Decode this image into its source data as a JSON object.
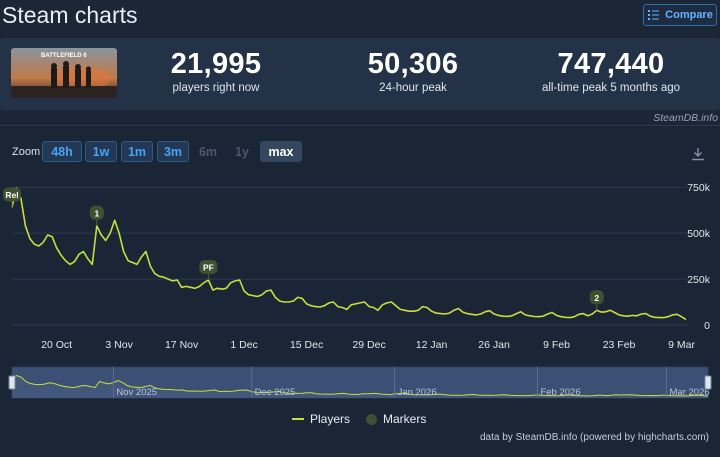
{
  "header": {
    "title": "Steam charts",
    "compare_label": "Compare"
  },
  "stats": [
    {
      "value": "21,995",
      "label": "players right now"
    },
    {
      "value": "50,306",
      "label": "24-hour peak"
    },
    {
      "value": "747,440",
      "label": "all-time peak 5 months ago"
    }
  ],
  "game_image_text": "BATTLEFIELD 6",
  "credit_top": "SteamDB.info",
  "zoom": {
    "label": "Zoom",
    "buttons": [
      {
        "label": "48h",
        "state": "active"
      },
      {
        "label": "1w",
        "state": "active"
      },
      {
        "label": "1m",
        "state": "active"
      },
      {
        "label": "3m",
        "state": "active"
      },
      {
        "label": "6m",
        "state": "disabled"
      },
      {
        "label": "1y",
        "state": "disabled"
      },
      {
        "label": "max",
        "state": "selected"
      }
    ]
  },
  "legend": {
    "players": "Players",
    "markers": "Markers"
  },
  "credit_bottom": "data by SteamDB.info (powered by highcharts.com)",
  "chart_data": {
    "type": "line",
    "series": [
      {
        "name": "Players",
        "color": "#c5e03c",
        "points": [
          [
            "2025-10-10",
            640
          ],
          [
            "2025-10-11",
            747
          ],
          [
            "2025-10-12",
            690
          ],
          [
            "2025-10-13",
            540
          ],
          [
            "2025-10-14",
            470
          ],
          [
            "2025-10-15",
            440
          ],
          [
            "2025-10-16",
            430
          ],
          [
            "2025-10-17",
            450
          ],
          [
            "2025-10-18",
            490
          ],
          [
            "2025-10-19",
            480
          ],
          [
            "2025-10-20",
            420
          ],
          [
            "2025-10-21",
            380
          ],
          [
            "2025-10-22",
            350
          ],
          [
            "2025-10-23",
            330
          ],
          [
            "2025-10-24",
            345
          ],
          [
            "2025-10-25",
            385
          ],
          [
            "2025-10-26",
            400
          ],
          [
            "2025-10-27",
            360
          ],
          [
            "2025-10-28",
            330
          ],
          [
            "2025-10-29",
            540
          ],
          [
            "2025-10-30",
            490
          ],
          [
            "2025-10-31",
            460
          ],
          [
            "2025-11-01",
            500
          ],
          [
            "2025-11-02",
            570
          ],
          [
            "2025-11-03",
            500
          ],
          [
            "2025-11-04",
            400
          ],
          [
            "2025-11-05",
            350
          ],
          [
            "2025-11-06",
            340
          ],
          [
            "2025-11-07",
            330
          ],
          [
            "2025-11-08",
            370
          ],
          [
            "2025-11-09",
            400
          ],
          [
            "2025-11-10",
            320
          ],
          [
            "2025-11-11",
            280
          ],
          [
            "2025-11-12",
            265
          ],
          [
            "2025-11-13",
            260
          ],
          [
            "2025-11-14",
            250
          ],
          [
            "2025-11-15",
            240
          ],
          [
            "2025-11-16",
            245
          ],
          [
            "2025-11-17",
            205
          ],
          [
            "2025-11-18",
            210
          ],
          [
            "2025-11-19",
            205
          ],
          [
            "2025-11-20",
            200
          ],
          [
            "2025-11-21",
            210
          ],
          [
            "2025-11-22",
            230
          ],
          [
            "2025-11-23",
            245
          ],
          [
            "2025-11-24",
            190
          ],
          [
            "2025-11-25",
            200
          ],
          [
            "2025-11-26",
            195
          ],
          [
            "2025-11-27",
            200
          ],
          [
            "2025-11-28",
            230
          ],
          [
            "2025-11-29",
            240
          ],
          [
            "2025-11-30",
            245
          ],
          [
            "2025-12-01",
            185
          ],
          [
            "2025-12-02",
            165
          ],
          [
            "2025-12-03",
            160
          ],
          [
            "2025-12-04",
            155
          ],
          [
            "2025-12-05",
            165
          ],
          [
            "2025-12-06",
            185
          ],
          [
            "2025-12-07",
            190
          ],
          [
            "2025-12-08",
            150
          ],
          [
            "2025-12-09",
            130
          ],
          [
            "2025-12-10",
            125
          ],
          [
            "2025-12-11",
            125
          ],
          [
            "2025-12-12",
            130
          ],
          [
            "2025-12-13",
            150
          ],
          [
            "2025-12-14",
            145
          ],
          [
            "2025-12-15",
            115
          ],
          [
            "2025-12-16",
            105
          ],
          [
            "2025-12-17",
            100
          ],
          [
            "2025-12-18",
            98
          ],
          [
            "2025-12-19",
            105
          ],
          [
            "2025-12-20",
            120
          ],
          [
            "2025-12-21",
            125
          ],
          [
            "2025-12-22",
            100
          ],
          [
            "2025-12-23",
            95
          ],
          [
            "2025-12-24",
            85
          ],
          [
            "2025-12-25",
            110
          ],
          [
            "2025-12-26",
            115
          ],
          [
            "2025-12-27",
            120
          ],
          [
            "2025-12-28",
            125
          ],
          [
            "2025-12-29",
            100
          ],
          [
            "2025-12-30",
            95
          ],
          [
            "2025-12-31",
            80
          ],
          [
            "2026-01-01",
            110
          ],
          [
            "2026-01-02",
            120
          ],
          [
            "2026-01-03",
            125
          ],
          [
            "2026-01-04",
            105
          ],
          [
            "2026-01-05",
            85
          ],
          [
            "2026-01-06",
            80
          ],
          [
            "2026-01-07",
            75
          ],
          [
            "2026-01-08",
            75
          ],
          [
            "2026-01-09",
            80
          ],
          [
            "2026-01-10",
            100
          ],
          [
            "2026-01-11",
            95
          ],
          [
            "2026-01-12",
            75
          ],
          [
            "2026-01-13",
            65
          ],
          [
            "2026-01-14",
            62
          ],
          [
            "2026-01-15",
            60
          ],
          [
            "2026-01-16",
            65
          ],
          [
            "2026-01-17",
            80
          ],
          [
            "2026-01-18",
            90
          ],
          [
            "2026-01-19",
            70
          ],
          [
            "2026-01-20",
            62
          ],
          [
            "2026-01-21",
            58
          ],
          [
            "2026-01-22",
            55
          ],
          [
            "2026-01-23",
            60
          ],
          [
            "2026-01-24",
            72
          ],
          [
            "2026-01-25",
            78
          ],
          [
            "2026-01-26",
            60
          ],
          [
            "2026-01-27",
            52
          ],
          [
            "2026-01-28",
            48
          ],
          [
            "2026-01-29",
            47
          ],
          [
            "2026-01-30",
            50
          ],
          [
            "2026-01-31",
            62
          ],
          [
            "2026-02-01",
            72
          ],
          [
            "2026-02-02",
            55
          ],
          [
            "2026-02-03",
            50
          ],
          [
            "2026-02-04",
            46
          ],
          [
            "2026-02-05",
            45
          ],
          [
            "2026-02-06",
            48
          ],
          [
            "2026-02-07",
            60
          ],
          [
            "2026-02-08",
            68
          ],
          [
            "2026-02-09",
            52
          ],
          [
            "2026-02-10",
            45
          ],
          [
            "2026-02-11",
            42
          ],
          [
            "2026-02-12",
            40
          ],
          [
            "2026-02-13",
            45
          ],
          [
            "2026-02-14",
            58
          ],
          [
            "2026-02-15",
            62
          ],
          [
            "2026-02-16",
            50
          ],
          [
            "2026-02-17",
            60
          ],
          [
            "2026-02-18",
            80
          ],
          [
            "2026-02-19",
            70
          ],
          [
            "2026-02-20",
            72
          ],
          [
            "2026-02-21",
            80
          ],
          [
            "2026-02-22",
            68
          ],
          [
            "2026-02-23",
            55
          ],
          [
            "2026-02-24",
            50
          ],
          [
            "2026-02-25",
            48
          ],
          [
            "2026-02-26",
            52
          ],
          [
            "2026-02-27",
            50
          ],
          [
            "2026-02-28",
            60
          ],
          [
            "2026-03-01",
            62
          ],
          [
            "2026-03-02",
            48
          ],
          [
            "2026-03-03",
            42
          ],
          [
            "2026-03-04",
            40
          ],
          [
            "2026-03-05",
            40
          ],
          [
            "2026-03-06",
            45
          ],
          [
            "2026-03-07",
            55
          ],
          [
            "2026-03-08",
            58
          ],
          [
            "2026-03-09",
            45
          ],
          [
            "2026-03-10",
            30
          ]
        ]
      }
    ],
    "markers": [
      {
        "label": "Rel",
        "date": "2025-10-10",
        "value": 640
      },
      {
        "label": "1",
        "date": "2025-10-29",
        "value": 540
      },
      {
        "label": "PF",
        "date": "2025-11-23",
        "value": 245
      },
      {
        "label": "2",
        "date": "2026-02-18",
        "value": 80
      }
    ],
    "x_ticks": [
      {
        "date": "2025-10-20",
        "label": "20 Oct"
      },
      {
        "date": "2025-11-03",
        "label": "3 Nov"
      },
      {
        "date": "2025-11-17",
        "label": "17 Nov"
      },
      {
        "date": "2025-12-01",
        "label": "1 Dec"
      },
      {
        "date": "2025-12-15",
        "label": "15 Dec"
      },
      {
        "date": "2025-12-29",
        "label": "29 Dec"
      },
      {
        "date": "2026-01-12",
        "label": "12 Jan"
      },
      {
        "date": "2026-01-26",
        "label": "26 Jan"
      },
      {
        "date": "2026-02-09",
        "label": "9 Feb"
      },
      {
        "date": "2026-02-23",
        "label": "23 Feb"
      },
      {
        "date": "2026-03-09",
        "label": "9 Mar"
      }
    ],
    "y_ticks": [
      {
        "value": 0,
        "label": "0"
      },
      {
        "value": 250,
        "label": "250k"
      },
      {
        "value": 500,
        "label": "500k"
      },
      {
        "value": 750,
        "label": "750k"
      }
    ],
    "ylim": [
      0,
      800
    ],
    "xlim": [
      "2025-10-10",
      "2026-03-10"
    ],
    "navigator_ticks": [
      {
        "date": "2025-11-01",
        "label": "Nov 2025"
      },
      {
        "date": "2025-12-01",
        "label": "Dec 2025"
      },
      {
        "date": "2026-01-01",
        "label": "Jan 2026"
      },
      {
        "date": "2026-02-01",
        "label": "Feb 2026"
      },
      {
        "date": "2026-03-01",
        "label": "Mar 2026"
      }
    ],
    "grid": true,
    "legend_position": "bottom-center"
  }
}
